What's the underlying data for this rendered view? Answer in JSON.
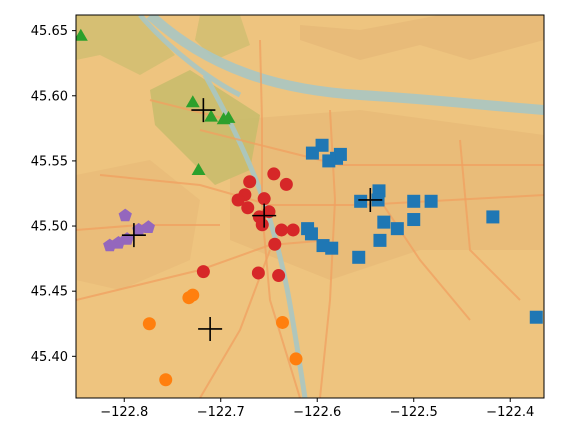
{
  "chart_data": {
    "type": "scatter",
    "title": "",
    "xlabel": "",
    "ylabel": "",
    "xlim": [
      -122.85,
      -122.365
    ],
    "ylim": [
      45.368,
      45.662
    ],
    "xticks": [
      -122.8,
      -122.7,
      -122.6,
      -122.5,
      -122.4
    ],
    "xtick_labels": [
      "−122.8",
      "−122.7",
      "−122.6",
      "−122.5",
      "−122.4"
    ],
    "yticks": [
      45.4,
      45.45,
      45.5,
      45.55,
      45.6,
      45.65
    ],
    "ytick_labels": [
      "45.40",
      "45.45",
      "45.50",
      "45.55",
      "45.60",
      "45.65"
    ],
    "grid": false,
    "legend": "none",
    "background": "street basemap tiles (Portland, OR)",
    "basemap_colors": {
      "land": "#eec47f",
      "water": "#a9c7c3",
      "parks": "#c7bc6b",
      "roads": "#f0a060",
      "urban": "#e3b474"
    },
    "series": [
      {
        "marker": "triangle",
        "color": "#2ca02c",
        "points": [
          {
            "x": -122.845,
            "y": 45.646
          },
          {
            "x": -122.729,
            "y": 45.595
          },
          {
            "x": -122.71,
            "y": 45.584
          },
          {
            "x": -122.697,
            "y": 45.582
          },
          {
            "x": -122.692,
            "y": 45.583
          },
          {
            "x": -122.723,
            "y": 45.543
          }
        ]
      },
      {
        "marker": "circle",
        "color": "#d62728",
        "points": [
          {
            "x": -122.67,
            "y": 45.534
          },
          {
            "x": -122.632,
            "y": 45.532
          },
          {
            "x": -122.645,
            "y": 45.54
          },
          {
            "x": -122.675,
            "y": 45.524
          },
          {
            "x": -122.682,
            "y": 45.52
          },
          {
            "x": -122.672,
            "y": 45.514
          },
          {
            "x": -122.655,
            "y": 45.521
          },
          {
            "x": -122.65,
            "y": 45.511
          },
          {
            "x": -122.66,
            "y": 45.507
          },
          {
            "x": -122.657,
            "y": 45.501
          },
          {
            "x": -122.637,
            "y": 45.497
          },
          {
            "x": -122.625,
            "y": 45.497
          },
          {
            "x": -122.644,
            "y": 45.486
          },
          {
            "x": -122.718,
            "y": 45.465
          },
          {
            "x": -122.661,
            "y": 45.464
          },
          {
            "x": -122.64,
            "y": 45.462
          }
        ]
      },
      {
        "marker": "square",
        "color": "#1f77b4",
        "points": [
          {
            "x": -122.595,
            "y": 45.562
          },
          {
            "x": -122.605,
            "y": 45.556
          },
          {
            "x": -122.576,
            "y": 45.555
          },
          {
            "x": -122.58,
            "y": 45.552
          },
          {
            "x": -122.588,
            "y": 45.55
          },
          {
            "x": -122.536,
            "y": 45.527
          },
          {
            "x": -122.537,
            "y": 45.52
          },
          {
            "x": -122.555,
            "y": 45.519
          },
          {
            "x": -122.5,
            "y": 45.519
          },
          {
            "x": -122.482,
            "y": 45.519
          },
          {
            "x": -122.418,
            "y": 45.507
          },
          {
            "x": -122.5,
            "y": 45.505
          },
          {
            "x": -122.531,
            "y": 45.503
          },
          {
            "x": -122.517,
            "y": 45.498
          },
          {
            "x": -122.61,
            "y": 45.498
          },
          {
            "x": -122.606,
            "y": 45.494
          },
          {
            "x": -122.535,
            "y": 45.489
          },
          {
            "x": -122.594,
            "y": 45.485
          },
          {
            "x": -122.585,
            "y": 45.483
          },
          {
            "x": -122.557,
            "y": 45.476
          },
          {
            "x": -122.373,
            "y": 45.43
          }
        ]
      },
      {
        "marker": "pentagon",
        "color": "#9467bd",
        "points": [
          {
            "x": -122.799,
            "y": 45.508
          },
          {
            "x": -122.775,
            "y": 45.499
          },
          {
            "x": -122.785,
            "y": 45.497
          },
          {
            "x": -122.797,
            "y": 45.49
          },
          {
            "x": -122.806,
            "y": 45.487
          },
          {
            "x": -122.815,
            "y": 45.485
          }
        ]
      },
      {
        "marker": "circle",
        "color": "#ff7f0e",
        "points": [
          {
            "x": -122.733,
            "y": 45.445
          },
          {
            "x": -122.729,
            "y": 45.447
          },
          {
            "x": -122.774,
            "y": 45.425
          },
          {
            "x": -122.636,
            "y": 45.426
          },
          {
            "x": -122.622,
            "y": 45.398
          },
          {
            "x": -122.757,
            "y": 45.382
          }
        ]
      },
      {
        "marker": "plus",
        "color": "#000000",
        "points": [
          {
            "x": -122.718,
            "y": 45.589
          },
          {
            "x": -122.655,
            "y": 45.508
          },
          {
            "x": -122.545,
            "y": 45.52
          },
          {
            "x": -122.79,
            "y": 45.493
          },
          {
            "x": -122.711,
            "y": 45.421
          }
        ]
      }
    ]
  }
}
